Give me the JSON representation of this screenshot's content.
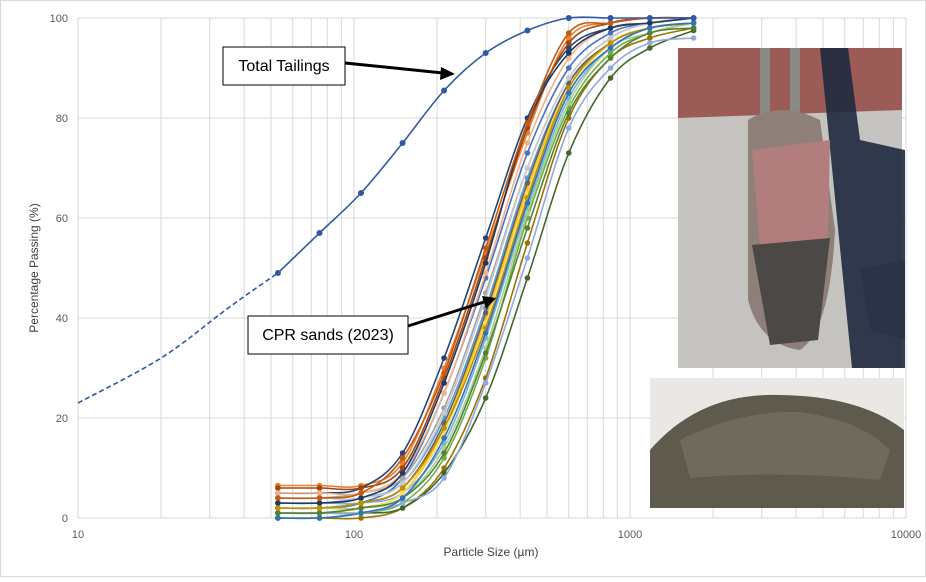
{
  "chart_data": {
    "type": "line",
    "xlabel": "Particle Size (µm)",
    "ylabel": "Percentage Passing (%)",
    "xscale": "log",
    "xlim": [
      10,
      10000
    ],
    "ylim": [
      0,
      100
    ],
    "grid": true,
    "x_tick_labels": [
      "10",
      "100",
      "1000",
      "10000"
    ],
    "x_tick_values": [
      10,
      100,
      1000,
      10000
    ],
    "y_tick_labels": [
      "0",
      "20",
      "40",
      "60",
      "80",
      "100"
    ],
    "y_tick_values": [
      0,
      20,
      40,
      60,
      80,
      100
    ],
    "annotations": [
      {
        "id": "total",
        "text": "Total Tailings"
      },
      {
        "id": "cpr",
        "text": "CPR sands (2023)"
      }
    ],
    "total_tailings": {
      "color": "#2f58a6",
      "extrapolated": [
        [
          10,
          23
        ],
        [
          20,
          32
        ],
        [
          35,
          42
        ],
        [
          53,
          49
        ]
      ],
      "x": [
        53,
        75,
        106,
        150,
        212,
        300,
        425,
        600,
        850,
        1180,
        1700
      ],
      "y": [
        49,
        57,
        65,
        75,
        85.5,
        93,
        97.5,
        100,
        100,
        100,
        100
      ]
    },
    "cpr_sands_sieves": [
      53,
      75,
      106,
      150,
      212,
      300,
      425,
      600,
      850,
      1180,
      1700
    ],
    "cpr_sands": [
      {
        "color": "#4472c4",
        "values": [
          2,
          2,
          3,
          8,
          25,
          48,
          73,
          90,
          97,
          99,
          100
        ]
      },
      {
        "color": "#ed7d31",
        "values": [
          6.5,
          6.5,
          6.5,
          11,
          30,
          53,
          77,
          96,
          99,
          100,
          100
        ]
      },
      {
        "color": "#a5a5a5",
        "values": [
          4,
          4,
          5,
          8,
          22,
          45,
          70,
          88,
          96,
          99,
          100
        ]
      },
      {
        "color": "#ffc000",
        "values": [
          1,
          1,
          2,
          5,
          18,
          40,
          66,
          86,
          95,
          98,
          99
        ]
      },
      {
        "color": "#5b9bd5",
        "values": [
          3,
          3,
          4,
          7,
          20,
          42,
          68,
          87,
          95,
          98,
          99
        ]
      },
      {
        "color": "#70ad47",
        "values": [
          0,
          0,
          1,
          3,
          12,
          32,
          60,
          82,
          93,
          97,
          99
        ]
      },
      {
        "color": "#264478",
        "values": [
          5,
          5,
          6,
          13,
          32,
          56,
          80,
          94,
          98,
          99,
          100
        ]
      },
      {
        "color": "#9e480e",
        "values": [
          6,
          6,
          6,
          10,
          28,
          52,
          78,
          95,
          99,
          100,
          100
        ]
      },
      {
        "color": "#636363",
        "values": [
          2,
          2,
          3,
          6,
          19,
          41,
          67,
          87,
          95,
          98,
          99
        ]
      },
      {
        "color": "#997300",
        "values": [
          0,
          0,
          0,
          2,
          10,
          28,
          55,
          80,
          92,
          96,
          98
        ]
      },
      {
        "color": "#43682b",
        "values": [
          1,
          1,
          1,
          2,
          9,
          24,
          48,
          73,
          88,
          94,
          97.5
        ]
      },
      {
        "color": "#7cafdd",
        "values": [
          3,
          3,
          3,
          5,
          15,
          36,
          62,
          84,
          94,
          98,
          99
        ]
      },
      {
        "color": "#f4b183",
        "values": [
          5,
          5,
          5,
          9,
          25,
          49,
          75,
          92,
          98,
          99,
          100
        ]
      },
      {
        "color": "#c9c9c9",
        "values": [
          4,
          4,
          4,
          7,
          21,
          44,
          70,
          88,
          96,
          99,
          100
        ]
      },
      {
        "color": "#ffd966",
        "values": [
          2,
          2,
          2,
          5,
          17,
          39,
          65,
          85,
          95,
          98,
          99
        ]
      },
      {
        "color": "#8faadc",
        "values": [
          1,
          1,
          1,
          3,
          8,
          27,
          52,
          78,
          90,
          95,
          96
        ]
      },
      {
        "color": "#a9d18e",
        "values": [
          2,
          2,
          2,
          4,
          14,
          34,
          61,
          83,
          94,
          97,
          99
        ]
      },
      {
        "color": "#1f3864",
        "values": [
          3,
          3,
          4,
          9,
          27,
          51,
          79,
          93,
          98,
          99,
          100
        ]
      },
      {
        "color": "#c55a11",
        "values": [
          4,
          4,
          5,
          12,
          29,
          54,
          79,
          97,
          99,
          100,
          100
        ]
      },
      {
        "color": "#548235",
        "values": [
          1,
          1,
          2,
          4,
          13,
          33,
          58,
          81,
          92,
          97,
          98
        ]
      },
      {
        "color": "#bf9000",
        "values": [
          2,
          2,
          3,
          6,
          18,
          38,
          64,
          86,
          95,
          98,
          99
        ]
      },
      {
        "color": "#2e75b6",
        "values": [
          0,
          0,
          1,
          4,
          16,
          37,
          63,
          85,
          94,
          98,
          99
        ]
      }
    ]
  }
}
